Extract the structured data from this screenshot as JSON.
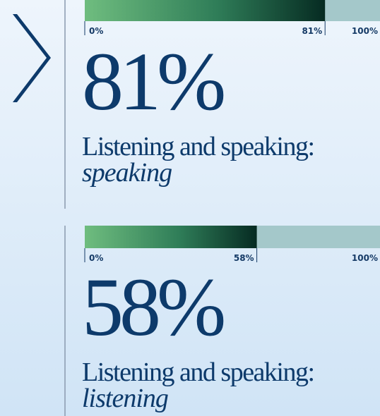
{
  "items": [
    {
      "value": 81,
      "percent_label": "81%",
      "scale_min": "0%",
      "scale_max": "100%",
      "label": "Listening and speaking:",
      "sublabel": "speaking"
    },
    {
      "value": 58,
      "percent_label": "58%",
      "scale_min": "0%",
      "scale_max": "100%",
      "label": "Listening and speaking:",
      "sublabel": "listening"
    }
  ]
}
